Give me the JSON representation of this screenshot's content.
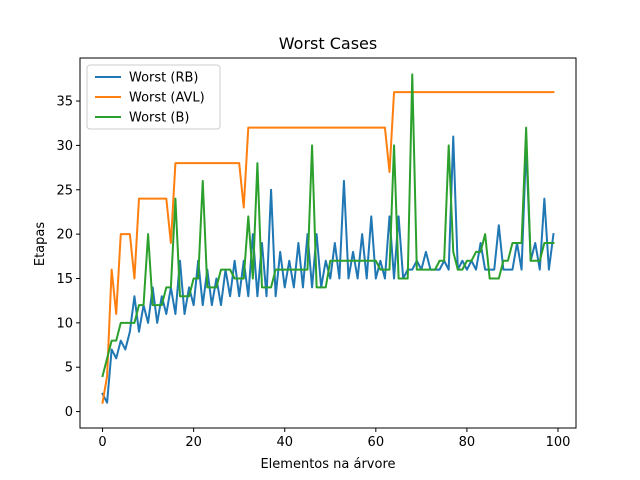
{
  "chart_data": {
    "type": "line",
    "title": "Worst Cases",
    "xlabel": "Elementos na árvore",
    "ylabel": "Etapas",
    "xlim": [
      -4.95,
      103.95
    ],
    "ylim": [
      -1.85,
      39.85
    ],
    "xticks": [
      0,
      20,
      40,
      60,
      80,
      100
    ],
    "yticks": [
      0,
      5,
      10,
      15,
      20,
      25,
      30,
      35
    ],
    "grid": false,
    "legend_position": "top-left",
    "series": [
      {
        "name": "Worst (RB)",
        "color": "#1f77b4",
        "x": [
          0,
          1,
          2,
          3,
          4,
          5,
          6,
          7,
          8,
          9,
          10,
          11,
          12,
          13,
          14,
          15,
          16,
          17,
          18,
          19,
          20,
          21,
          22,
          23,
          24,
          25,
          26,
          27,
          28,
          29,
          30,
          31,
          32,
          33,
          34,
          35,
          36,
          37,
          38,
          39,
          40,
          41,
          42,
          43,
          44,
          45,
          46,
          47,
          48,
          49,
          50,
          51,
          52,
          53,
          54,
          55,
          56,
          57,
          58,
          59,
          60,
          61,
          62,
          63,
          64,
          65,
          66,
          67,
          68,
          69,
          70,
          71,
          72,
          73,
          74,
          75,
          76,
          77,
          78,
          79,
          80,
          81,
          82,
          83,
          84,
          85,
          86,
          87,
          88,
          89,
          90,
          91,
          92,
          93,
          94,
          95,
          96,
          97,
          98,
          99
        ],
        "y": [
          2,
          1,
          7,
          6,
          8,
          7,
          9,
          13,
          9,
          12,
          10,
          14,
          10,
          13,
          11,
          14,
          11,
          17,
          11,
          14,
          12,
          17,
          12,
          16,
          12,
          15,
          12,
          16,
          13,
          17,
          13,
          17,
          13,
          20,
          13,
          19,
          13,
          25,
          13,
          18,
          14,
          17,
          14,
          19,
          14,
          20,
          14,
          20,
          14,
          17,
          15,
          19,
          15,
          26,
          15,
          18,
          15,
          20,
          15,
          22,
          15,
          17,
          15,
          22,
          15,
          22,
          15,
          16,
          16,
          17,
          16,
          18,
          16,
          16,
          16,
          17,
          16,
          31,
          16,
          17,
          16,
          17,
          16,
          19,
          16,
          16,
          16,
          21,
          16,
          16,
          16,
          19,
          16,
          30,
          17,
          19,
          16,
          24,
          16,
          20
        ]
      },
      {
        "name": "Worst (AVL)",
        "color": "#ff7f0e",
        "x": [
          0,
          1,
          2,
          3,
          4,
          5,
          6,
          7,
          8,
          9,
          10,
          11,
          12,
          13,
          14,
          15,
          16,
          17,
          18,
          19,
          20,
          21,
          22,
          23,
          24,
          25,
          26,
          27,
          28,
          29,
          30,
          31,
          32,
          33,
          34,
          35,
          36,
          37,
          38,
          39,
          40,
          41,
          42,
          43,
          44,
          45,
          46,
          47,
          48,
          49,
          50,
          51,
          52,
          53,
          54,
          55,
          56,
          57,
          58,
          59,
          60,
          61,
          62,
          63,
          64,
          65,
          66,
          67,
          68,
          69,
          70,
          71,
          72,
          73,
          74,
          75,
          76,
          77,
          78,
          79,
          80,
          81,
          82,
          83,
          84,
          85,
          86,
          87,
          88,
          89,
          90,
          91,
          92,
          93,
          94,
          95,
          96,
          97,
          98,
          99
        ],
        "y": [
          1,
          4,
          16,
          11,
          20,
          20,
          20,
          15,
          24,
          24,
          24,
          24,
          24,
          24,
          24,
          19,
          28,
          28,
          28,
          28,
          28,
          28,
          28,
          28,
          28,
          28,
          28,
          28,
          28,
          28,
          28,
          23,
          32,
          32,
          32,
          32,
          32,
          32,
          32,
          32,
          32,
          32,
          32,
          32,
          32,
          32,
          32,
          32,
          32,
          32,
          32,
          32,
          32,
          32,
          32,
          32,
          32,
          32,
          32,
          32,
          32,
          32,
          32,
          27,
          36,
          36,
          36,
          36,
          36,
          36,
          36,
          36,
          36,
          36,
          36,
          36,
          36,
          36,
          36,
          36,
          36,
          36,
          36,
          36,
          36,
          36,
          36,
          36,
          36,
          36,
          36,
          36,
          36,
          36,
          36,
          36,
          36,
          36,
          36,
          36
        ]
      },
      {
        "name": "Worst (B)",
        "color": "#2ca02c",
        "x": [
          0,
          1,
          2,
          3,
          4,
          5,
          6,
          7,
          8,
          9,
          10,
          11,
          12,
          13,
          14,
          15,
          16,
          17,
          18,
          19,
          20,
          21,
          22,
          23,
          24,
          25,
          26,
          27,
          28,
          29,
          30,
          31,
          32,
          33,
          34,
          35,
          36,
          37,
          38,
          39,
          40,
          41,
          42,
          43,
          44,
          45,
          46,
          47,
          48,
          49,
          50,
          51,
          52,
          53,
          54,
          55,
          56,
          57,
          58,
          59,
          60,
          61,
          62,
          63,
          64,
          65,
          66,
          67,
          68,
          69,
          70,
          71,
          72,
          73,
          74,
          75,
          76,
          77,
          78,
          79,
          80,
          81,
          82,
          83,
          84,
          85,
          86,
          87,
          88,
          89,
          90,
          91,
          92,
          93,
          94,
          95,
          96,
          97,
          98,
          99
        ],
        "y": [
          4,
          6,
          8,
          8,
          10,
          10,
          10,
          10,
          12,
          12,
          20,
          12,
          12,
          12,
          14,
          14,
          24,
          13,
          13,
          13,
          15,
          15,
          26,
          14,
          14,
          14,
          16,
          16,
          16,
          15,
          15,
          15,
          22,
          15,
          28,
          14,
          14,
          14,
          16,
          16,
          16,
          16,
          16,
          16,
          16,
          16,
          30,
          14,
          14,
          14,
          17,
          17,
          17,
          17,
          17,
          17,
          17,
          17,
          17,
          17,
          17,
          16,
          16,
          16,
          30,
          15,
          15,
          15,
          38,
          16,
          16,
          16,
          16,
          16,
          17,
          17,
          30,
          18,
          16,
          16,
          17,
          17,
          18,
          18,
          20,
          15,
          15,
          15,
          17,
          17,
          19,
          19,
          19,
          32,
          17,
          17,
          17,
          19,
          19,
          19
        ]
      }
    ]
  }
}
